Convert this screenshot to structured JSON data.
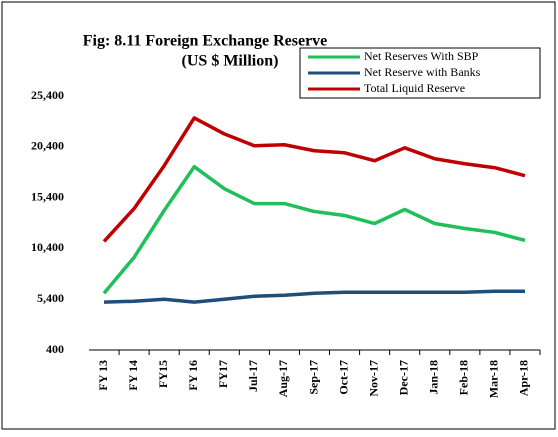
{
  "chart_data": {
    "type": "line",
    "title": "Fig: 8.11  Foreign Exchange Reserve",
    "subtitle": "(US $ Million)",
    "categories": [
      "FY 13",
      "FY 14",
      "FY15",
      "FY 16",
      "FY17",
      "Jul-17",
      "Aug-17",
      "Sep-17",
      "Oct-17",
      "Nov-17",
      "Dec-17",
      "Jan-18",
      "Feb-18",
      "Mar-18",
      "Apr-18"
    ],
    "series": [
      {
        "name": "Net Reserves With SBP",
        "color": "#1fbf5a",
        "values": [
          5990,
          9520,
          14130,
          18440,
          16280,
          14810,
          14810,
          14030,
          13640,
          12850,
          14230,
          12850,
          12360,
          11970,
          11190
        ]
      },
      {
        "name": "Net Reserve with Banks",
        "color": "#1f4e79",
        "values": [
          5110,
          5200,
          5400,
          5110,
          5400,
          5690,
          5790,
          5990,
          6090,
          6090,
          6090,
          6090,
          6090,
          6180,
          6180
        ]
      },
      {
        "name": "Total Liquid Reserve",
        "color": "#c00000",
        "values": [
          11090,
          14320,
          18540,
          23240,
          21670,
          20500,
          20600,
          20010,
          19810,
          19030,
          20300,
          19220,
          18730,
          18340,
          17560
        ]
      }
    ],
    "ylim": [
      400,
      25400
    ],
    "yticks": [
      {
        "value": 400,
        "label": "400"
      },
      {
        "value": 5400,
        "label": "5,400"
      },
      {
        "value": 10400,
        "label": "10,400"
      },
      {
        "value": 15400,
        "label": "15,400"
      },
      {
        "value": 20400,
        "label": "20,400"
      },
      {
        "value": 25400,
        "label": "25,400"
      }
    ],
    "grid": false,
    "legend": "top-right"
  }
}
